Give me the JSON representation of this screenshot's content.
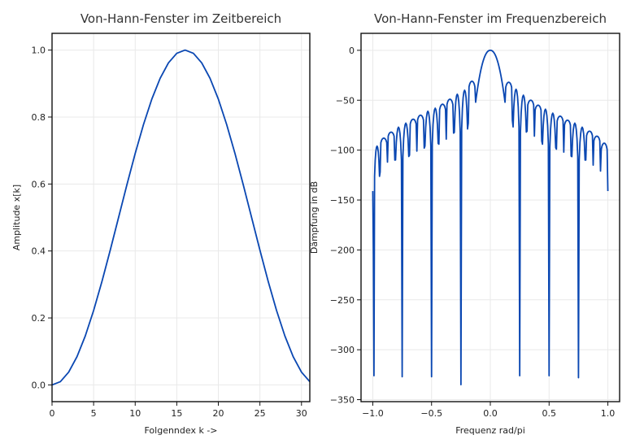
{
  "chart_data": [
    {
      "type": "line",
      "title": "Von-Hann-Fenster im Zeitbereich",
      "xlabel": "Folgenndex k ->",
      "ylabel": "Amplitude x[k]",
      "xlim": [
        0,
        31
      ],
      "ylim": [
        -0.05,
        1.05
      ],
      "xticks": [
        0,
        5,
        10,
        15,
        20,
        25,
        30
      ],
      "xtick_labels": [
        "0",
        "5",
        "10",
        "15",
        "20",
        "25",
        "30"
      ],
      "yticks": [
        0.0,
        0.2,
        0.4,
        0.6,
        0.8,
        1.0
      ],
      "ytick_labels": [
        "0.0",
        "0.2",
        "0.4",
        "0.6",
        "0.8",
        "1.0"
      ],
      "grid": true,
      "color": "#0a47b2",
      "series": [
        {
          "x": [
            0,
            1,
            2,
            3,
            4,
            5,
            6,
            7,
            8,
            9,
            10,
            11,
            12,
            13,
            14,
            15,
            16,
            17,
            18,
            19,
            20,
            21,
            22,
            23,
            24,
            25,
            26,
            27,
            28,
            29,
            30,
            31
          ],
          "values": [
            0.0,
            0.0096,
            0.0381,
            0.0843,
            0.1464,
            0.2222,
            0.3087,
            0.4025,
            0.5,
            0.5975,
            0.6913,
            0.7778,
            0.8536,
            0.9157,
            0.9619,
            0.9904,
            1.0,
            0.9904,
            0.9619,
            0.9157,
            0.8536,
            0.7778,
            0.6913,
            0.5975,
            0.5,
            0.4025,
            0.3087,
            0.2222,
            0.1464,
            0.0843,
            0.0381,
            0.0096
          ]
        }
      ]
    },
    {
      "type": "line",
      "title": "Von-Hann-Fenster im Frequenzbereich",
      "xlabel": "Frequenz rad/pi",
      "ylabel": "Dämpfung in dB",
      "xlim": [
        -1.1,
        1.1
      ],
      "ylim": [
        -352,
        17
      ],
      "xticks": [
        -1.0,
        -0.5,
        0.0,
        0.5,
        1.0
      ],
      "xtick_labels": [
        "−1.0",
        "−0.5",
        "0.0",
        "0.5",
        "1.0"
      ],
      "yticks": [
        0,
        -50,
        -100,
        -150,
        -200,
        -250,
        -300,
        -350
      ],
      "ytick_labels": [
        "0",
        "−50",
        "−100",
        "−150",
        "−200",
        "−250",
        "−300",
        "−350"
      ],
      "grid": true,
      "color": "#0a47b2",
      "main_lobe_edge": 0.125,
      "edge_value": -141,
      "nulls": [
        {
          "x": -0.99,
          "value": -326
        },
        {
          "x": -0.9375,
          "value": -122
        },
        {
          "x": -0.875,
          "value": -112
        },
        {
          "x": -0.8125,
          "value": -110
        },
        {
          "x": -0.75,
          "value": -327
        },
        {
          "x": -0.6875,
          "value": -105
        },
        {
          "x": -0.625,
          "value": -101
        },
        {
          "x": -0.5625,
          "value": -98
        },
        {
          "x": -0.5,
          "value": -327
        },
        {
          "x": -0.4375,
          "value": -94
        },
        {
          "x": -0.375,
          "value": -89
        },
        {
          "x": -0.3125,
          "value": -83
        },
        {
          "x": -0.25,
          "value": -335
        },
        {
          "x": -0.1875,
          "value": -73
        },
        {
          "x": -0.125,
          "value": -52
        },
        {
          "x": 0.125,
          "value": -52
        },
        {
          "x": 0.1875,
          "value": -70
        },
        {
          "x": 0.25,
          "value": -326
        },
        {
          "x": 0.3125,
          "value": -81
        },
        {
          "x": 0.375,
          "value": -86
        },
        {
          "x": 0.4375,
          "value": -91
        },
        {
          "x": 0.5,
          "value": -326
        },
        {
          "x": 0.5625,
          "value": -99
        },
        {
          "x": 0.625,
          "value": -102
        },
        {
          "x": 0.6875,
          "value": -106
        },
        {
          "x": 0.75,
          "value": -328
        },
        {
          "x": 0.8125,
          "value": -110
        },
        {
          "x": 0.875,
          "value": -115
        },
        {
          "x": 0.9375,
          "value": -121
        }
      ],
      "peaks": [
        {
          "x": -0.9625,
          "value": -96
        },
        {
          "x": -0.9,
          "value": -88
        },
        {
          "x": -0.84,
          "value": -82
        },
        {
          "x": -0.78,
          "value": -77
        },
        {
          "x": -0.72,
          "value": -73
        },
        {
          "x": -0.655,
          "value": -69
        },
        {
          "x": -0.595,
          "value": -65
        },
        {
          "x": -0.53,
          "value": -61
        },
        {
          "x": -0.47,
          "value": -58
        },
        {
          "x": -0.405,
          "value": -54
        },
        {
          "x": -0.345,
          "value": -49
        },
        {
          "x": -0.285,
          "value": -44
        },
        {
          "x": -0.22,
          "value": -40
        },
        {
          "x": -0.155,
          "value": -31
        },
        {
          "x": 0.0,
          "value": 0
        },
        {
          "x": 0.155,
          "value": -32
        },
        {
          "x": 0.22,
          "value": -39
        },
        {
          "x": 0.285,
          "value": -45
        },
        {
          "x": 0.345,
          "value": -50
        },
        {
          "x": 0.405,
          "value": -55
        },
        {
          "x": 0.47,
          "value": -59
        },
        {
          "x": 0.53,
          "value": -63
        },
        {
          "x": 0.595,
          "value": -66
        },
        {
          "x": 0.655,
          "value": -70
        },
        {
          "x": 0.72,
          "value": -73
        },
        {
          "x": 0.78,
          "value": -77
        },
        {
          "x": 0.84,
          "value": -81
        },
        {
          "x": 0.905,
          "value": -86
        },
        {
          "x": 0.965,
          "value": -93
        }
      ]
    }
  ]
}
